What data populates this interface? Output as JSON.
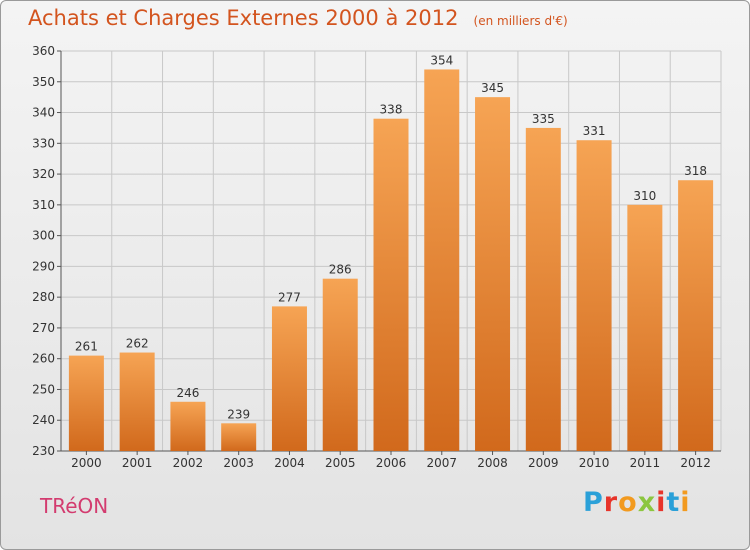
{
  "title": "Achats et Charges Externes 2000 à 2012",
  "subtitle": "(en milliers d'€)",
  "town": "TRéON",
  "logo": {
    "text": "Proxiti",
    "letters": [
      "P",
      "r",
      "o",
      "x",
      "i",
      "t",
      "i"
    ],
    "colors": [
      "#2aa0d8",
      "#e7342a",
      "#f29a1f",
      "#8cc63f",
      "#e7342a",
      "#2aa0d8",
      "#f29a1f"
    ]
  },
  "colors": {
    "title": "#d3541e",
    "town": "#d33b6f",
    "bar_top": "#f6a454",
    "bar_bottom": "#d1691c",
    "grid": "#c8c8c8"
  },
  "chart_data": {
    "type": "bar",
    "categories": [
      "2000",
      "2001",
      "2002",
      "2003",
      "2004",
      "2005",
      "2006",
      "2007",
      "2008",
      "2009",
      "2010",
      "2011",
      "2012"
    ],
    "values": [
      261,
      262,
      246,
      239,
      277,
      286,
      338,
      354,
      345,
      335,
      331,
      310,
      318
    ],
    "ylim": [
      230,
      360
    ],
    "yticks": [
      230,
      240,
      250,
      260,
      270,
      280,
      290,
      300,
      310,
      320,
      330,
      340,
      350,
      360
    ],
    "grid": true,
    "data_labels": true
  }
}
